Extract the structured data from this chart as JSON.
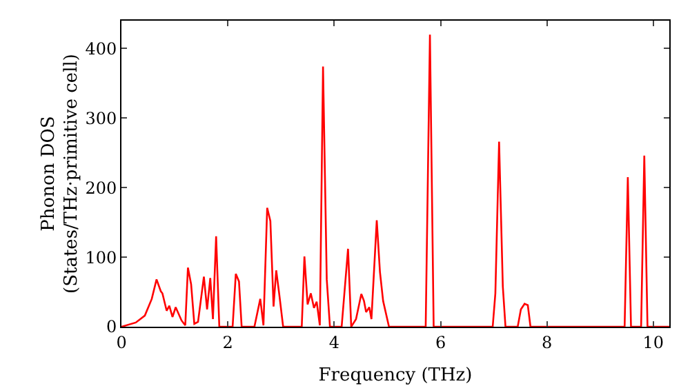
{
  "chart_data": {
    "type": "line",
    "xlabel": "Frequency (THz)",
    "ylabel": "Phonon DOS\n(States/THz·primitive cell)",
    "xlim": [
      0,
      10.3
    ],
    "ylim": [
      0,
      440
    ],
    "xticks": [
      0,
      2,
      4,
      6,
      8,
      10
    ],
    "yticks": [
      0,
      100,
      200,
      300,
      400
    ],
    "grid": false,
    "marker": "none",
    "line_style": "solid",
    "x": [
      0,
      0.27,
      0.44,
      0.57,
      0.66,
      0.74,
      0.77,
      0.85,
      0.9,
      0.96,
      1.02,
      1.13,
      1.2,
      1.25,
      1.31,
      1.37,
      1.44,
      1.55,
      1.61,
      1.67,
      1.72,
      1.78,
      1.84,
      2.09,
      2.15,
      2.21,
      2.26,
      2.5,
      2.61,
      2.67,
      2.74,
      2.8,
      2.86,
      2.91,
      2.97,
      3.04,
      3.39,
      3.44,
      3.5,
      3.56,
      3.62,
      3.67,
      3.73,
      3.79,
      3.86,
      3.92,
      4.14,
      4.26,
      4.32,
      4.41,
      4.51,
      4.56,
      4.6,
      4.66,
      4.7,
      4.8,
      4.86,
      4.92,
      5.03,
      5.72,
      5.8,
      5.87,
      6.98,
      7.03,
      7.1,
      7.17,
      7.22,
      7.45,
      7.51,
      7.58,
      7.64,
      7.69,
      9.46,
      9.52,
      9.58,
      9.77,
      9.83,
      9.89,
      10.3
    ],
    "series": [
      {
        "color": "#ff0000",
        "values": [
          0,
          6,
          16,
          40,
          68,
          51,
          48,
          23,
          30,
          14,
          28,
          9,
          2,
          85,
          61,
          4,
          7,
          72,
          25,
          70,
          11,
          130,
          0,
          0,
          76,
          65,
          0,
          0,
          40,
          2,
          171,
          152,
          29,
          81,
          45,
          0,
          0,
          101,
          32,
          48,
          27,
          36,
          2,
          374,
          68,
          0,
          0,
          112,
          0,
          11,
          47,
          37,
          21,
          28,
          11,
          153,
          79,
          37,
          0,
          0,
          420,
          0,
          0,
          48,
          266,
          58,
          0,
          0,
          25,
          33,
          31,
          0,
          0,
          215,
          0,
          0,
          246,
          0,
          0
        ]
      }
    ]
  }
}
